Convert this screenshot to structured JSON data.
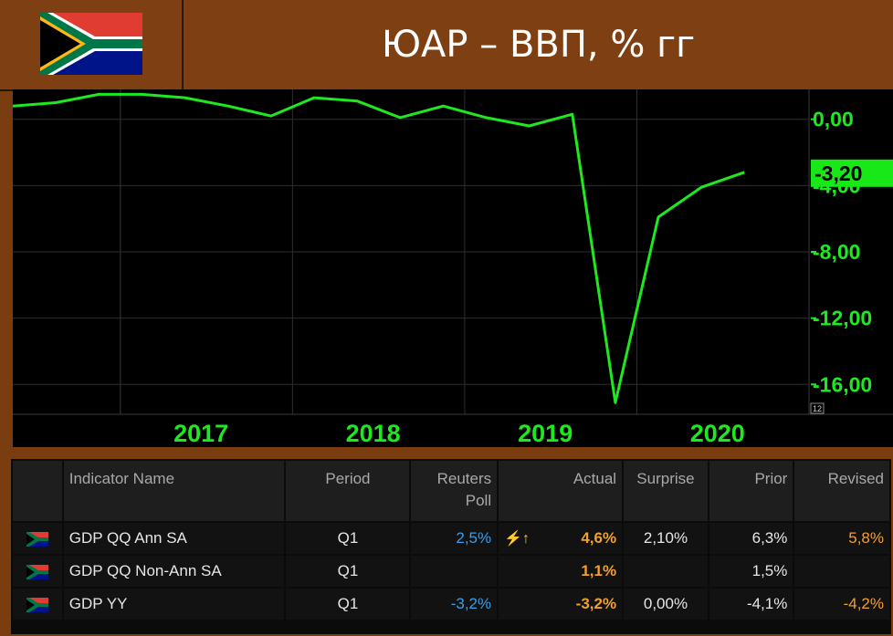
{
  "header": {
    "title": "ЮАР – ВВП, % гг"
  },
  "colors": {
    "background": "#7a3d10",
    "line": "#1ee81e",
    "last_value_box": "#18e818",
    "blue": "#3a9ee8",
    "orange": "#f2a02c"
  },
  "chart_data": {
    "type": "line",
    "title": "ЮАР – ВВП, % гг",
    "x_tick_labels": [
      "2017",
      "2018",
      "2019",
      "2020"
    ],
    "y_tick_labels": [
      "0,00",
      "-4,00",
      "-8,00",
      "-12,00",
      "-16,00"
    ],
    "y_ticks": [
      0,
      -4,
      -8,
      -12,
      -16
    ],
    "ylim": [
      -17.8,
      1.8
    ],
    "xlim": [
      2016.375,
      2021.0
    ],
    "grid": true,
    "last_value_label": "-3,20",
    "corner_label": "12",
    "series": [
      {
        "x": [
          2016.375,
          2016.625,
          2016.875,
          2017.125,
          2017.375,
          2017.625,
          2017.875,
          2018.125,
          2018.375,
          2018.625,
          2018.875,
          2019.125,
          2019.375,
          2019.625,
          2019.875,
          2020.125,
          2020.375,
          2020.625
        ],
        "values": [
          0.8,
          1.0,
          1.5,
          1.5,
          1.3,
          0.8,
          0.2,
          1.3,
          1.1,
          0.1,
          0.8,
          0.1,
          -0.4,
          0.3,
          -17.1,
          -5.9,
          -4.1,
          -3.2
        ]
      }
    ]
  },
  "table": {
    "headers": [
      "",
      "Indicator Name",
      "Period",
      "Reuters\nPoll",
      "Actual",
      "Surprise",
      "Prior",
      "Revised"
    ],
    "rows": [
      {
        "name": "GDP QQ Ann SA",
        "period": "Q1",
        "poll": "2,5%",
        "flag_icon": "lightning-up-arrow",
        "flash": "⚡↑",
        "actual": "4,6%",
        "surprise": "2,10%",
        "prior": "6,3%",
        "revised": "5,8%"
      },
      {
        "name": "GDP QQ Non-Ann SA",
        "period": "Q1",
        "poll": "",
        "flash": "",
        "actual": "1,1%",
        "surprise": "",
        "prior": "1,5%",
        "revised": ""
      },
      {
        "name": "GDP YY",
        "period": "Q1",
        "poll": "-3,2%",
        "flash": "",
        "actual": "-3,2%",
        "surprise": "0,00%",
        "prior": "-4,1%",
        "revised": "-4,2%"
      }
    ]
  }
}
